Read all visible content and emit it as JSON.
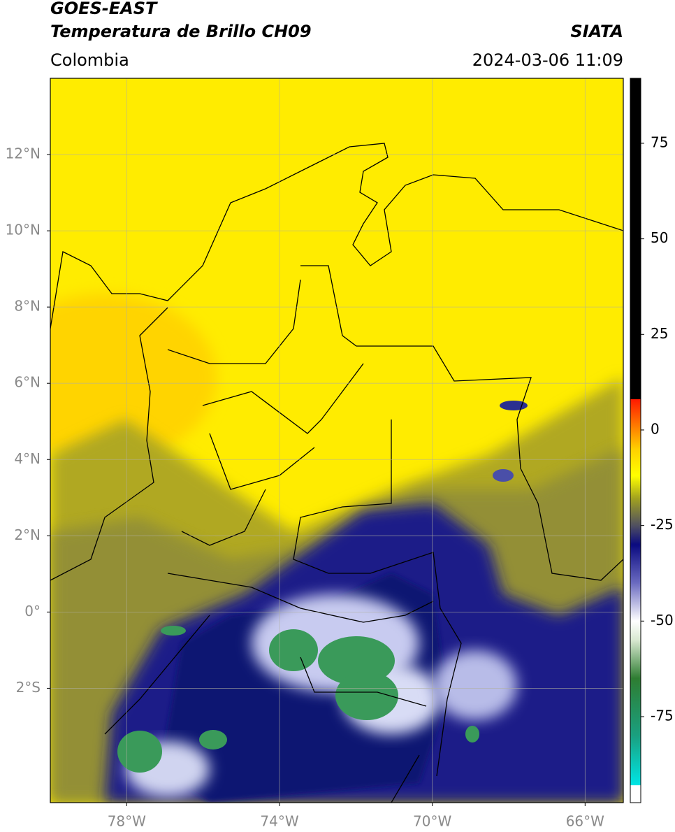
{
  "chart_data": {
    "type": "map",
    "title": "GOES-EAST",
    "subtitle": "Temperatura de Brillo CH09",
    "source": "SIATA",
    "region": "Colombia",
    "datetime": "2024-03-06 11:09",
    "xlim": [
      -80,
      -65
    ],
    "ylim": [
      -5,
      14
    ],
    "xticks": [
      {
        "value": -78,
        "label": "78°W"
      },
      {
        "value": -74,
        "label": "74°W"
      },
      {
        "value": -70,
        "label": "70°W"
      },
      {
        "value": -66,
        "label": "66°W"
      }
    ],
    "yticks": [
      {
        "value": 12,
        "label": "12°N"
      },
      {
        "value": 10,
        "label": "10°N"
      },
      {
        "value": 8,
        "label": "8°N"
      },
      {
        "value": 6,
        "label": "6°N"
      },
      {
        "value": 4,
        "label": "4°N"
      },
      {
        "value": 2,
        "label": "2°N"
      },
      {
        "value": 0,
        "label": "0°"
      },
      {
        "value": -2,
        "label": "2°S"
      }
    ],
    "grid": true,
    "colorbar": {
      "lim": [
        -97.5,
        92
      ],
      "ticks": [
        75,
        50,
        25,
        0,
        -25,
        -50,
        -75
      ],
      "colormap": [
        {
          "value": -97.5,
          "color": "#ffffff"
        },
        {
          "value": -93,
          "color": "#ffffff"
        },
        {
          "value": -92.9,
          "color": "#00e5e5"
        },
        {
          "value": -80,
          "color": "#1aa080"
        },
        {
          "value": -65,
          "color": "#2e7d32"
        },
        {
          "value": -55,
          "color": "#d8e8d0"
        },
        {
          "value": -50,
          "color": "#ffffff"
        },
        {
          "value": -40,
          "color": "#6a6ac0"
        },
        {
          "value": -30,
          "color": "#0a0a80"
        },
        {
          "value": -25,
          "color": "#505060"
        },
        {
          "value": -18,
          "color": "#a0a020"
        },
        {
          "value": -12,
          "color": "#ffff00"
        },
        {
          "value": -5,
          "color": "#ffd000"
        },
        {
          "value": 8,
          "color": "#ff1a00"
        },
        {
          "value": 8.1,
          "color": "#000000"
        },
        {
          "value": 92,
          "color": "#000000"
        }
      ]
    }
  }
}
